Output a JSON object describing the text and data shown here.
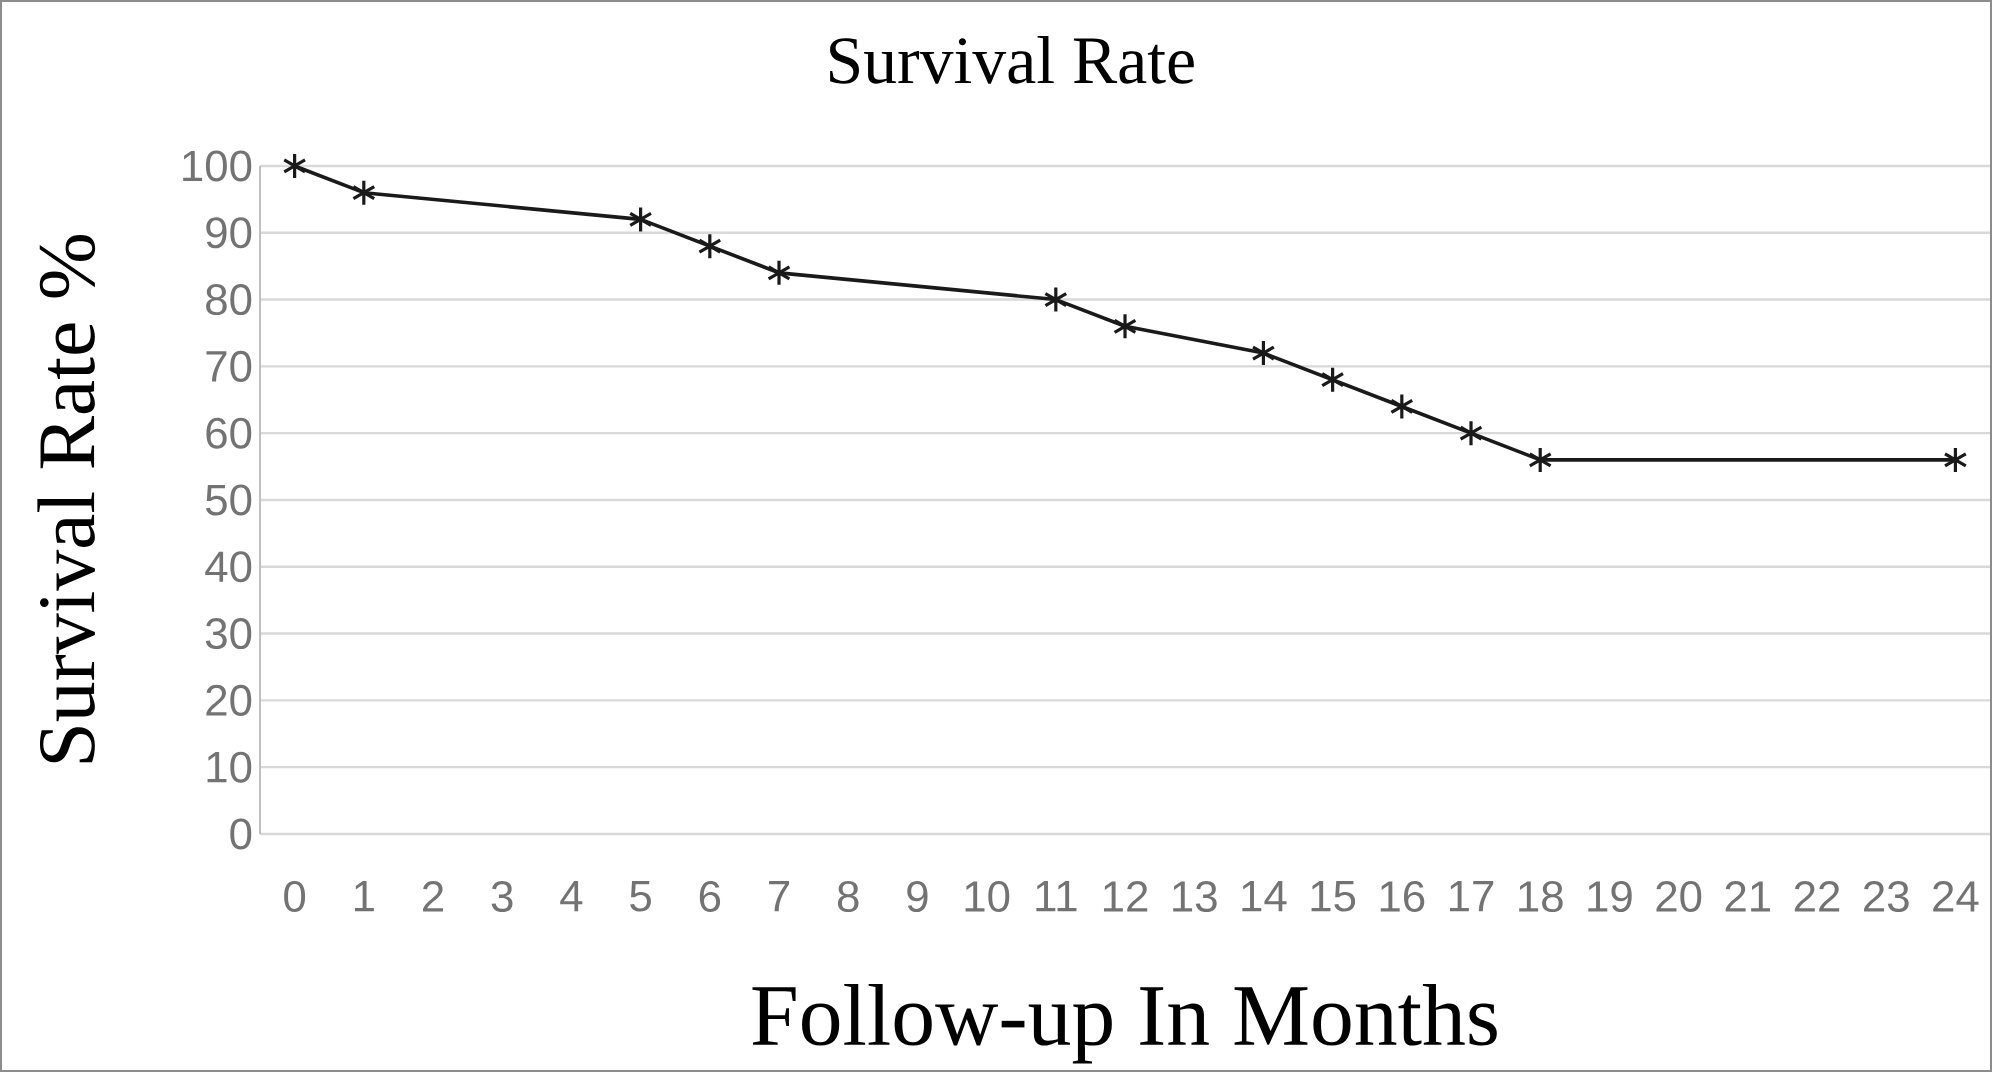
{
  "chart_data": {
    "type": "line",
    "title": "Survival Rate",
    "xlabel": "Follow-up In Months",
    "ylabel": "Survival Rate %",
    "x": [
      0,
      1,
      5,
      6,
      7,
      11,
      12,
      14,
      15,
      16,
      17,
      18,
      24
    ],
    "values": [
      100,
      96,
      92,
      88,
      84,
      80,
      76,
      72,
      68,
      64,
      60,
      56,
      56
    ],
    "color": "#1a1a1a",
    "marker": "cross",
    "line_style": "solid",
    "xlim": [
      -0.5,
      24.5
    ],
    "xticks": [
      0,
      1,
      2,
      3,
      4,
      5,
      6,
      7,
      8,
      9,
      10,
      11,
      12,
      13,
      14,
      15,
      16,
      17,
      18,
      19,
      20,
      21,
      22,
      23,
      24
    ],
    "ylim": [
      0,
      100
    ],
    "yticks": [
      0,
      10,
      20,
      30,
      40,
      50,
      60,
      70,
      80,
      90,
      100
    ],
    "grid": "y"
  }
}
